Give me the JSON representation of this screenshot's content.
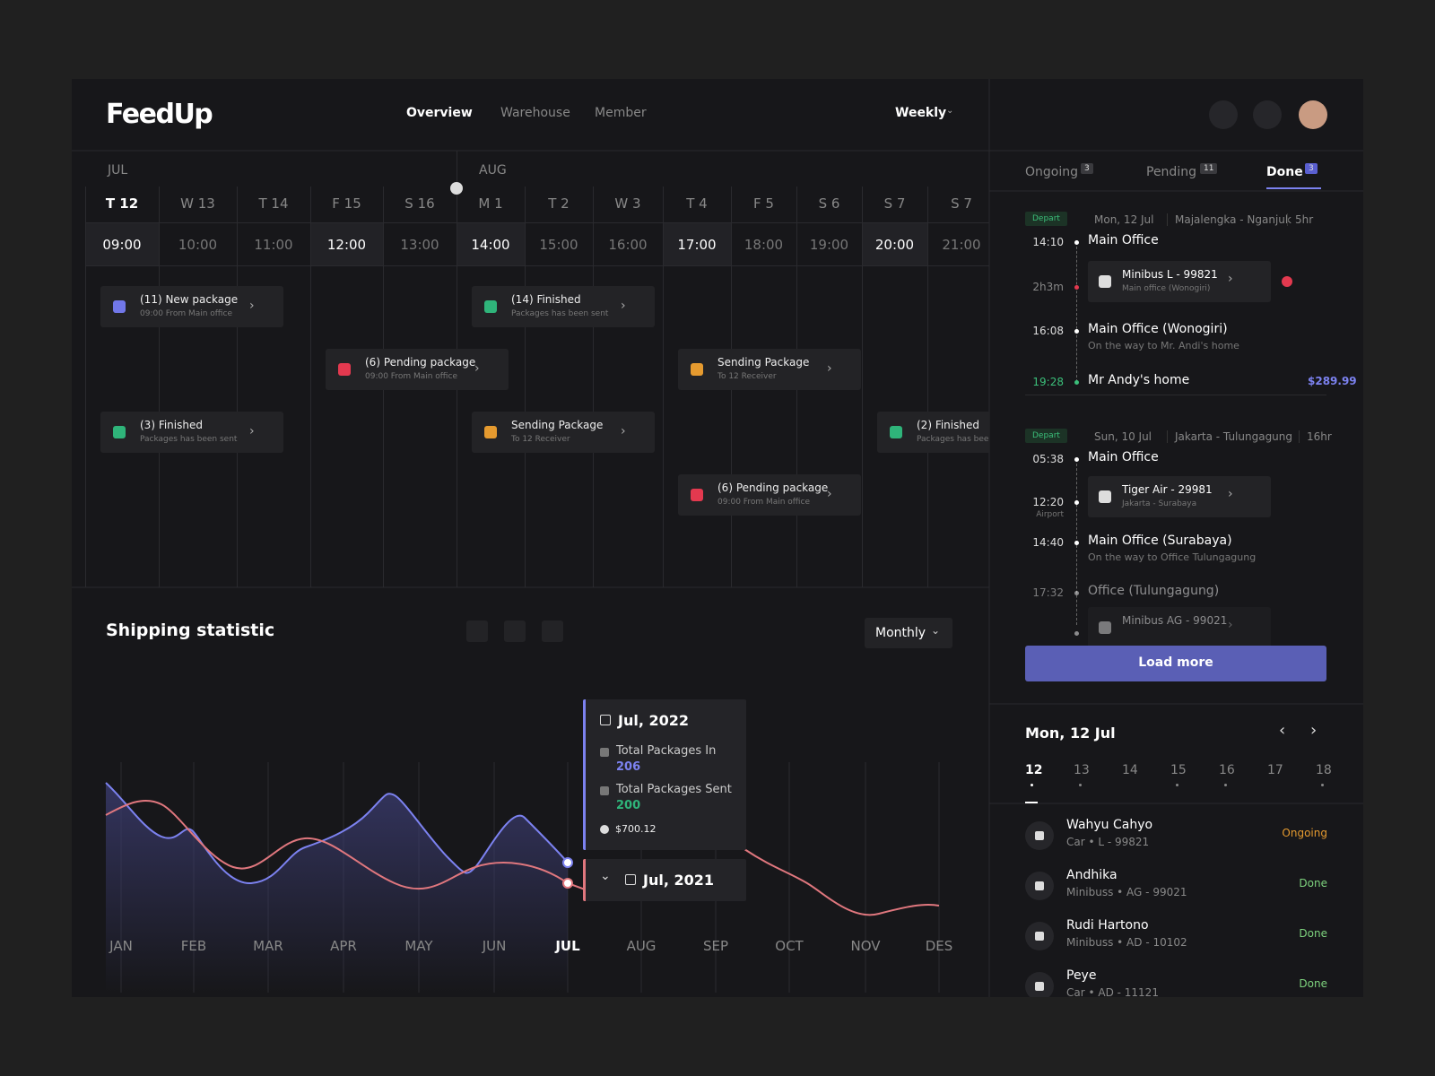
{
  "header": {
    "logo": "FeedUp",
    "nav": [
      "Overview",
      "Warehouse",
      "Member"
    ],
    "period": "Weekly"
  },
  "timeline": {
    "months": [
      "JUL",
      "AUG"
    ],
    "days": [
      "T 12",
      "W 13",
      "T 14",
      "F 15",
      "S 16",
      "M 1",
      "T 2",
      "W 3",
      "T 4",
      "F 5",
      "S 6",
      "S 7",
      "S 7"
    ],
    "times": [
      "09:00",
      "10:00",
      "11:00",
      "12:00",
      "13:00",
      "14:00",
      "15:00",
      "16:00",
      "17:00",
      "18:00",
      "19:00",
      "20:00",
      "21:00"
    ],
    "events": [
      {
        "title": "(11) New package",
        "sub": "09:00 From Main office",
        "kind": "new"
      },
      {
        "title": "(14) Finished",
        "sub": "Packages has been sent",
        "kind": "finished"
      },
      {
        "title": "(6) Pending package",
        "sub": "09:00 From Main office",
        "kind": "pending"
      },
      {
        "title": "Sending Package",
        "sub": "To 12 Receiver",
        "kind": "sending"
      },
      {
        "title": "(3) Finished",
        "sub": "Packages has been sent",
        "kind": "finished"
      },
      {
        "title": "Sending Package",
        "sub": "To 12 Receiver",
        "kind": "sending"
      },
      {
        "title": "(2) Finished",
        "sub": "Packages has been sent",
        "kind": "finished"
      },
      {
        "title": "(6) Pending package",
        "sub": "09:00 From Main office",
        "kind": "pending"
      }
    ]
  },
  "stats": {
    "title": "Shipping statistic",
    "period": "Monthly",
    "months": [
      "JAN",
      "FEB",
      "MAR",
      "APR",
      "MAY",
      "JUN",
      "JUL",
      "AUG",
      "SEP",
      "OCT",
      "NOV",
      "DES"
    ],
    "tooltip": {
      "date": "Jul, 2022",
      "in_label": "Total Packages In",
      "in_value": 206,
      "sent_label": "Total Packages Sent",
      "sent_value": 200,
      "price": "$700.12"
    },
    "compare": "Jul, 2021"
  },
  "sidebar": {
    "tabs": [
      {
        "label": "Ongoing",
        "count": 3
      },
      {
        "label": "Pending",
        "count": 11
      },
      {
        "label": "Done",
        "count": 3
      }
    ],
    "trips": [
      {
        "badge": "Depart",
        "date": "Mon, 12 Jul",
        "route": "Majalengka - Nganjuk",
        "duration": "5hr",
        "stops": [
          {
            "time": "14:10",
            "place": "Main Office"
          },
          {
            "time": "2h3m",
            "vehicle": "Minibus L - 99821",
            "vehicle_sub": "Main office (Wonogiri)"
          },
          {
            "time": "16:08",
            "place": "Main Office (Wonogiri)",
            "sub": "On the way to Mr. Andi's home"
          },
          {
            "time": "19:28",
            "place": "Mr Andy's home",
            "price": "$289.99"
          }
        ]
      },
      {
        "badge": "Depart",
        "date": "Sun, 10 Jul",
        "route": "Jakarta - Tulungagung",
        "duration": "16hr",
        "stops": [
          {
            "time": "05:38",
            "place": "Main Office"
          },
          {
            "time": "12:20",
            "time_sub": "Airport",
            "vehicle": "Tiger Air - 29981",
            "vehicle_sub": "Jakarta - Surabaya"
          },
          {
            "time": "14:40",
            "place": "Main Office (Surabaya)",
            "sub": "On the way to Office Tulungagung"
          },
          {
            "time": "17:32",
            "place": "Office (Tulungagung)"
          },
          {
            "vehicle": "Minibus AG - 99021"
          }
        ]
      }
    ],
    "load_more": "Load more",
    "calendar": {
      "title": "Mon, 12 Jul",
      "days": [
        12,
        13,
        14,
        15,
        16,
        17,
        18
      ]
    },
    "people": [
      {
        "name": "Wahyu Cahyo",
        "info": "Car • L - 99821",
        "status": "Ongoing"
      },
      {
        "name": "Andhika",
        "info": "Minibuss • AG - 99021",
        "status": "Done"
      },
      {
        "name": "Rudi Hartono",
        "info": "Minibuss • AD - 10102",
        "status": "Done"
      },
      {
        "name": "Peye",
        "info": "Car • AD - 11121",
        "status": "Done"
      }
    ]
  }
}
